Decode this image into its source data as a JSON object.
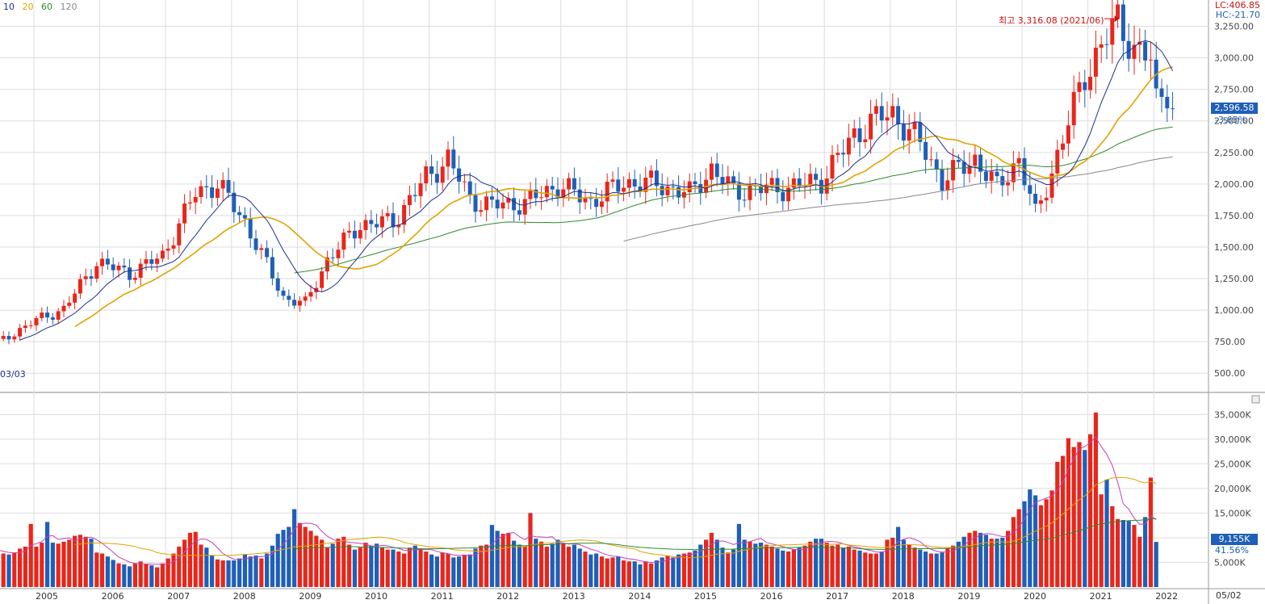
{
  "legend": {
    "items": [
      {
        "label": "10",
        "color": "#1d2f8f"
      },
      {
        "label": "20",
        "color": "#e0a400"
      },
      {
        "label": "60",
        "color": "#2e8b2e"
      },
      {
        "label": "120",
        "color": "#888888"
      }
    ]
  },
  "top_right": {
    "lc": "LC:406.85",
    "hc": "HC:-21.70"
  },
  "price_panel": {
    "last_value": "2,596.58",
    "change_pct": "-3.65%",
    "start_label": "03/03",
    "annotation": "최고 3,316.08 (2021/06)",
    "y_ticks": [
      "500.00",
      "750.00",
      "1,000.00",
      "1,250.00",
      "1,500.00",
      "1,750.00",
      "2,000.00",
      "2,250.00",
      "2,500.00",
      "2,750.00",
      "3,000.00",
      "3,250.00"
    ]
  },
  "volume_panel": {
    "last_value": "9,155K",
    "pct": "41.56%",
    "y_ticks": [
      "5,000K",
      "10,000K",
      "15,000K",
      "20,000K",
      "25,000K",
      "30,000K",
      "35,000K"
    ]
  },
  "x_axis": {
    "years": [
      "2005",
      "2006",
      "2007",
      "2008",
      "2009",
      "2010",
      "2011",
      "2012",
      "2013",
      "2014",
      "2015",
      "2016",
      "2017",
      "2018",
      "2019",
      "2020",
      "2021",
      "2022"
    ],
    "end_label": "05/02"
  },
  "colors": {
    "up": "#e8261b",
    "down": "#1f5fb8",
    "grid": "#dddddd"
  },
  "chart_data": {
    "type": "candlestick",
    "title": "",
    "interval": "monthly",
    "price_ylim": [
      450,
      3330
    ],
    "volume_ylim": [
      0,
      38000
    ],
    "anchors_close": [
      [
        "2004-06",
        740
      ],
      [
        "2004-12",
        900
      ],
      [
        "2005-06",
        1010
      ],
      [
        "2005-12",
        1380
      ],
      [
        "2006-06",
        1290
      ],
      [
        "2006-12",
        1430
      ],
      [
        "2007-06",
        1930
      ],
      [
        "2007-10",
        2000
      ],
      [
        "2008-03",
        1700
      ],
      [
        "2008-10",
        1100
      ],
      [
        "2009-02",
        1050
      ],
      [
        "2009-06",
        1400
      ],
      [
        "2009-12",
        1680
      ],
      [
        "2010-06",
        1700
      ],
      [
        "2010-12",
        2050
      ],
      [
        "2011-04",
        2200
      ],
      [
        "2011-08",
        1880
      ],
      [
        "2011-12",
        1830
      ],
      [
        "2012-06",
        1850
      ],
      [
        "2012-12",
        1990
      ],
      [
        "2013-06",
        1860
      ],
      [
        "2013-12",
        2010
      ],
      [
        "2014-06",
        2000
      ],
      [
        "2014-12",
        1920
      ],
      [
        "2015-04",
        2120
      ],
      [
        "2015-08",
        1940
      ],
      [
        "2015-12",
        1960
      ],
      [
        "2016-06",
        1970
      ],
      [
        "2016-12",
        2030
      ],
      [
        "2017-06",
        2390
      ],
      [
        "2017-10",
        2520
      ],
      [
        "2018-01",
        2560
      ],
      [
        "2018-06",
        2320
      ],
      [
        "2018-10",
        2030
      ],
      [
        "2019-04",
        2200
      ],
      [
        "2019-08",
        1970
      ],
      [
        "2019-12",
        2200
      ],
      [
        "2020-03",
        1750
      ],
      [
        "2020-06",
        2100
      ],
      [
        "2020-12",
        2870
      ],
      [
        "2021-06",
        3300
      ],
      [
        "2021-09",
        3070
      ],
      [
        "2021-12",
        2980
      ],
      [
        "2022-01",
        2660
      ],
      [
        "2022-03",
        2750
      ],
      [
        "2022-04",
        2596.58
      ]
    ],
    "annotation_high": {
      "date": "2021-06",
      "value": 3316.08
    },
    "volume_k": {
      "2004": [
        8500,
        8000,
        7800,
        7500,
        7200,
        7000,
        6800,
        6600,
        7000,
        7800,
        8200,
        12800
      ],
      "2005": [
        8200,
        9000,
        13200,
        9000,
        8800,
        9200,
        9600,
        10400,
        10600,
        10200,
        9800,
        7000
      ],
      "2006": [
        6800,
        6200,
        5500,
        4800,
        4600,
        4200,
        4800,
        5200,
        4600,
        4400,
        4000,
        4800
      ],
      "2007": [
        5800,
        6800,
        8200,
        9600,
        11000,
        11200,
        8600,
        8000,
        6400,
        5600,
        5400,
        5400
      ],
      "2008": [
        5400,
        5800,
        6600,
        6200,
        6400,
        5800,
        6800,
        8400,
        10800,
        11600,
        12200,
        15800
      ],
      "2009": [
        13000,
        12200,
        11400,
        10400,
        9600,
        8000,
        8800,
        9800,
        10200,
        8600,
        7600,
        8000
      ],
      "2010": [
        9000,
        8400,
        8800,
        8000,
        7600,
        7600,
        7200,
        6800,
        8000,
        8400,
        7800,
        7200
      ],
      "2011": [
        6600,
        6200,
        7000,
        6800,
        6000,
        6200,
        6400,
        6600,
        7800,
        8400,
        8600,
        12600
      ],
      "2012": [
        11400,
        10800,
        11000,
        9400,
        8600,
        8200,
        15000,
        9800,
        9200,
        8200,
        8800,
        9600
      ],
      "2013": [
        8800,
        8200,
        8600,
        7800,
        7200,
        6600,
        6800,
        6200,
        5800,
        6000,
        6200,
        5400
      ],
      "2014": [
        5200,
        5200,
        4600,
        5200,
        4800,
        5400,
        6000,
        6400,
        6000,
        6600,
        6800,
        7000
      ],
      "2015": [
        7400,
        8600,
        9600,
        11000,
        9600,
        8000,
        7000,
        7600,
        12800,
        9600,
        9200,
        8800
      ],
      "2016": [
        9000,
        8600,
        8200,
        7800,
        7400,
        7200,
        7600,
        8000,
        8400,
        9200,
        9800,
        9800
      ],
      "2017": [
        9000,
        8400,
        8600,
        8000,
        8200,
        7600,
        7400,
        7000,
        6800,
        6800,
        7200,
        9600
      ],
      "2018": [
        10000,
        12200,
        9600,
        8600,
        8000,
        7600,
        7200,
        6800,
        6800,
        7000,
        7800,
        8400
      ],
      "2019": [
        9200,
        10200,
        11000,
        11400,
        11000,
        10600,
        9800,
        9800,
        10000,
        11400,
        14200,
        15800
      ],
      "2020": [
        17400,
        19800,
        18600,
        16600,
        17800,
        19600,
        25400,
        26600,
        30200,
        28400,
        29400,
        27800
      ],
      "2021": [
        31000,
        35400,
        18800,
        21800,
        16400,
        13800,
        13600,
        13400,
        12600,
        10200,
        14200,
        22200
      ],
      "2022": [
        9155
      ]
    }
  }
}
